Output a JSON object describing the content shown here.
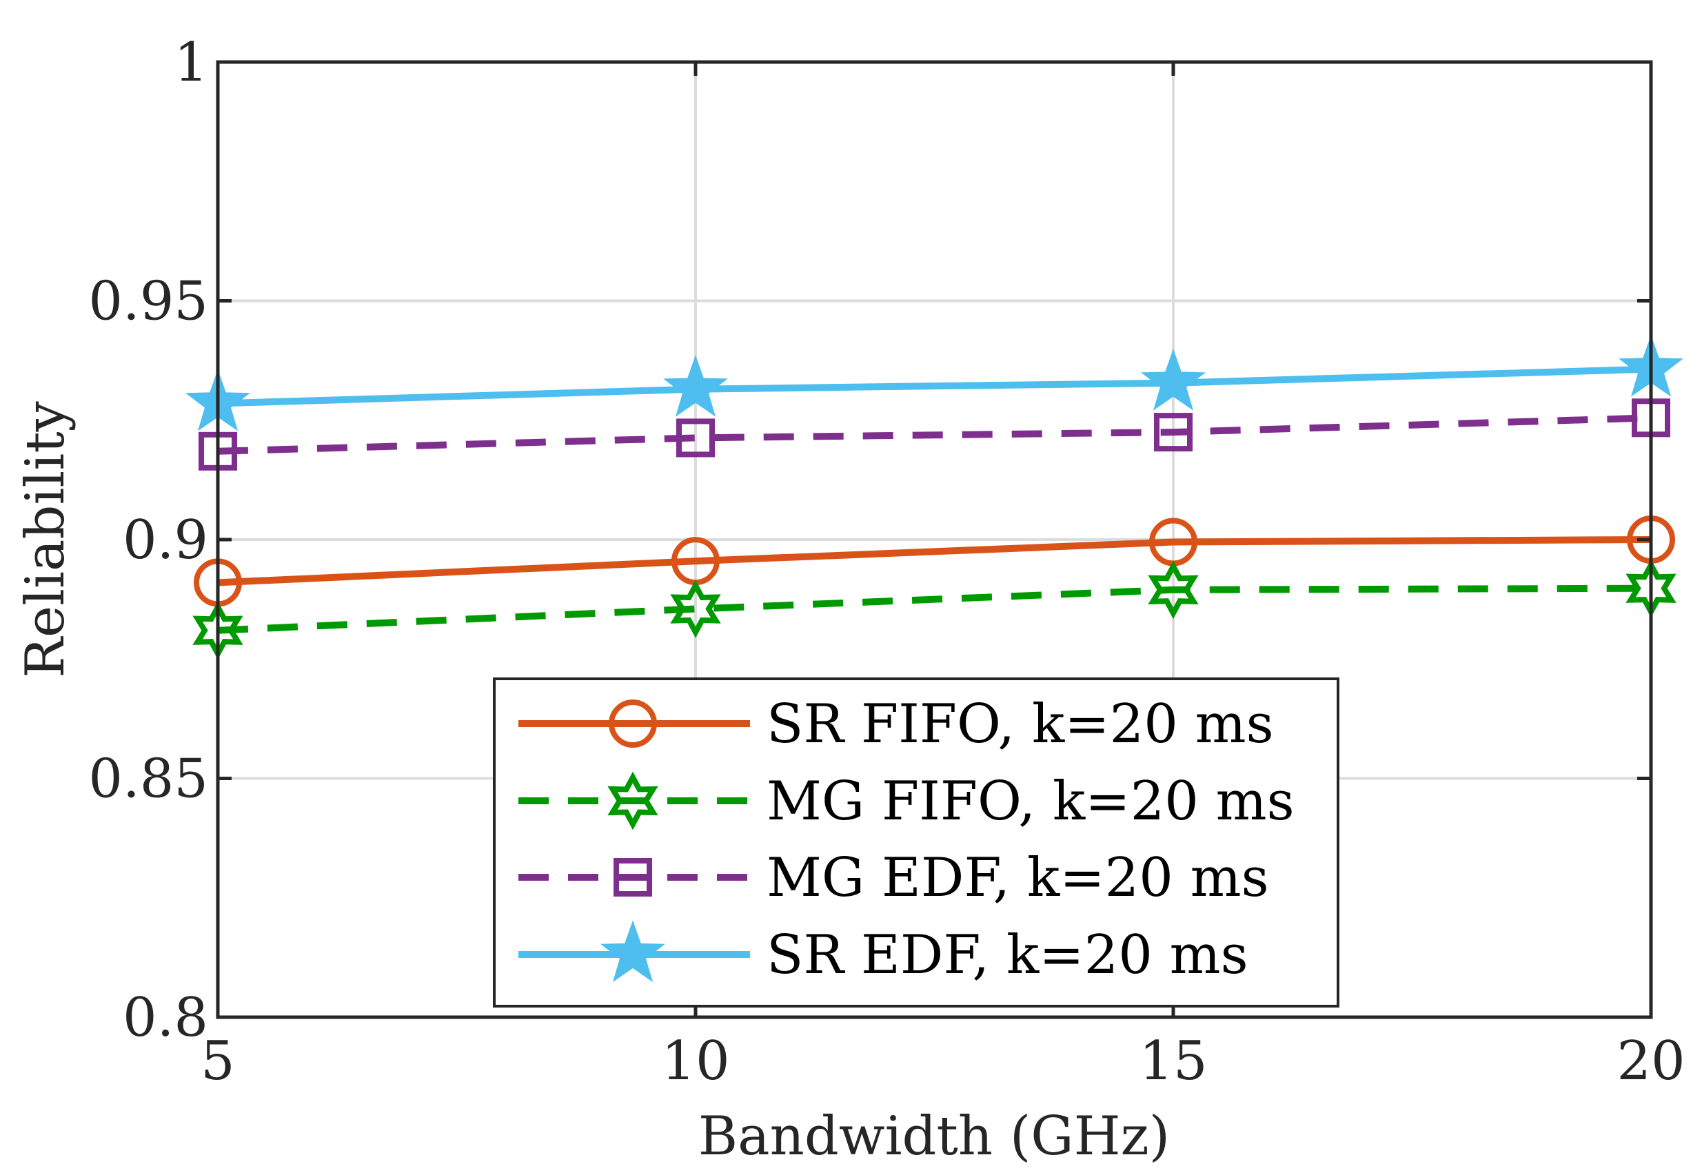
{
  "chart_data": {
    "type": "line",
    "title": "",
    "xlabel": "Bandwidth (GHz)",
    "ylabel": "Reliability",
    "x": [
      5,
      10,
      15,
      20
    ],
    "xlim": [
      5,
      20
    ],
    "ylim": [
      0.8,
      1
    ],
    "xticks": [
      5,
      10,
      15,
      20
    ],
    "yticks": [
      0.8,
      0.85,
      0.9,
      0.95,
      1
    ],
    "xtick_labels": [
      "5",
      "10",
      "15",
      "20"
    ],
    "ytick_labels": [
      "0.8",
      "0.85",
      "0.9",
      "0.95",
      "1"
    ],
    "grid": true,
    "legend_position": "bottom-center",
    "series": [
      {
        "name": "SR FIFO, k=20 ms",
        "values": [
          0.891,
          0.8955,
          0.8995,
          0.9
        ],
        "color": "#D95319",
        "dash": "solid",
        "marker": "circle"
      },
      {
        "name": "MG FIFO, k=20 ms",
        "values": [
          0.881,
          0.8855,
          0.8895,
          0.8898
        ],
        "color": "#009900",
        "dash": "dashed",
        "marker": "hexagram"
      },
      {
        "name": "MG EDF, k=20 ms",
        "values": [
          0.9185,
          0.9213,
          0.9225,
          0.9255
        ],
        "color": "#7E2F8E",
        "dash": "dashed",
        "marker": "square"
      },
      {
        "name": "SR EDF, k=20 ms",
        "values": [
          0.9285,
          0.9315,
          0.9328,
          0.9357
        ],
        "color": "#4DBEEE",
        "dash": "solid",
        "marker": "pentagram"
      }
    ]
  }
}
